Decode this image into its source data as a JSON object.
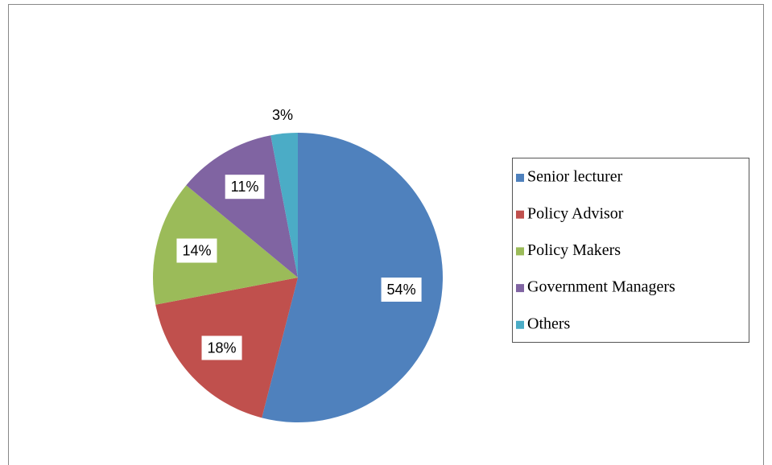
{
  "chart_data": {
    "type": "pie",
    "categories": [
      "Senior lecturer",
      "Policy Advisor",
      "Policy Makers",
      "Government Managers",
      "Others"
    ],
    "values": [
      54,
      18,
      14,
      11,
      3
    ],
    "value_labels": [
      "54%",
      "18%",
      "14%",
      "11%",
      "3%"
    ],
    "colors": [
      "#4f81bd",
      "#c0504d",
      "#9bbb59",
      "#8064a2",
      "#4bacc6"
    ],
    "legend": "right"
  }
}
